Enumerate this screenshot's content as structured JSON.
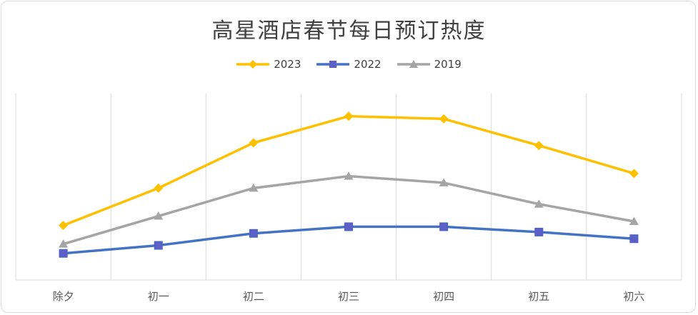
{
  "chart_data": {
    "type": "line",
    "title": "高星酒店春节每日预订热度",
    "categories": [
      "除夕",
      "初一",
      "初二",
      "初三",
      "初四",
      "初五",
      "初六"
    ],
    "series": [
      {
        "name": "2023",
        "color": "#FFC000",
        "marker": "diamond",
        "values": [
          20.5,
          34.5,
          51.5,
          61.5,
          60.5,
          50.5,
          40
        ]
      },
      {
        "name": "2022",
        "color": "#4472C4",
        "marker": "square",
        "values": [
          10,
          13,
          17.5,
          20,
          20,
          18,
          15.5
        ]
      },
      {
        "name": "2019",
        "color": "#A5A5A5",
        "marker": "triangle",
        "values": [
          13.5,
          24,
          34.5,
          39,
          36.5,
          28.5,
          22
        ]
      }
    ],
    "ylim": [
      0,
      70
    ],
    "xlabel": "",
    "ylabel": "",
    "y_axis_visible": false,
    "grid": "vertical",
    "legend_position": "top"
  }
}
